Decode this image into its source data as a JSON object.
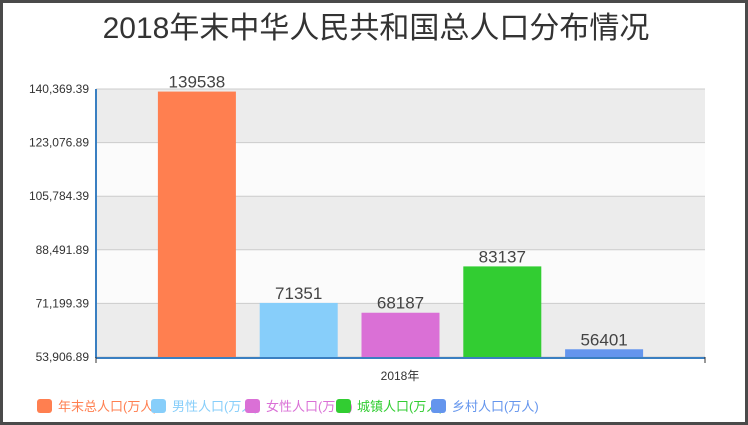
{
  "chart_data": {
    "type": "bar",
    "title": "2018年末中华人民共和国总人口分布情况",
    "categories": [
      "2018年"
    ],
    "series": [
      {
        "name": "年末总人口(万人)",
        "values": [
          139538
        ],
        "color": "#FF7F50"
      },
      {
        "name": "男性人口(万人)",
        "values": [
          71351
        ],
        "color": "#87CEFA"
      },
      {
        "name": "女性人口(万人)",
        "values": [
          68187
        ],
        "color": "#DA70D6"
      },
      {
        "name": "城镇人口(万人)",
        "values": [
          83137
        ],
        "color": "#32CD32"
      },
      {
        "name": "乡村人口(万人)",
        "values": [
          56401
        ],
        "color": "#6495ED"
      }
    ],
    "yticks": [
      "53,906.89",
      "71,199.39",
      "88,491.89",
      "105,784.39",
      "123,076.89",
      "140,369.39"
    ],
    "ylim": [
      53906.89,
      140369.39
    ],
    "xlabel": "",
    "ylabel": "",
    "grid": true,
    "legend": "bottom",
    "data_labels": true
  }
}
